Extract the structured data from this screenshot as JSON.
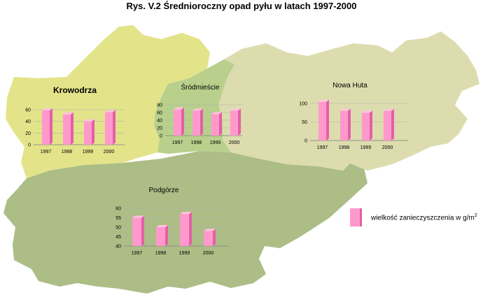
{
  "title": "Rys. V.2 Średnioroczny opad pyłu  w latach 1997-2000",
  "colors": {
    "krowodrza": "#e3e38a",
    "srodmiescie": "#b9d08c",
    "nowa_huta": "#dcdcae",
    "podgorze": "#acbd86",
    "bar_front": "#ff99cc",
    "bar_side": "#e45fa6",
    "bar_top": "#ffc2e0",
    "gridline": "#b0b0b0"
  },
  "legend": {
    "label": "wielkość zanieczyszczenia w g/m",
    "sup": "2"
  },
  "chart_data": [
    {
      "type": "bar",
      "district": "Krowodrza",
      "categories": [
        "1997",
        "1998",
        "1999",
        "2000"
      ],
      "values": [
        59,
        52,
        40,
        56
      ],
      "ylim": [
        0,
        60
      ],
      "yticks": [
        0,
        20,
        40,
        60
      ],
      "grid": true
    },
    {
      "type": "bar",
      "district": "Śródmieście",
      "categories": [
        "1997",
        "1998",
        "1999",
        "2000"
      ],
      "values": [
        68,
        65,
        56,
        65
      ],
      "ylim": [
        0,
        80
      ],
      "yticks": [
        0,
        20,
        40,
        60,
        80
      ],
      "grid": true
    },
    {
      "type": "bar",
      "district": "Nowa Huta",
      "categories": [
        "1997",
        "1998",
        "1999",
        "2000"
      ],
      "values": [
        104,
        80,
        75,
        80
      ],
      "ylim": [
        0,
        100
      ],
      "yticks": [
        0,
        50,
        100
      ],
      "grid": true
    },
    {
      "type": "bar",
      "district": "Podgórze",
      "categories": [
        "1997",
        "1998",
        "1999",
        "2000"
      ],
      "values": [
        55,
        50,
        57,
        48
      ],
      "ylim": [
        40,
        60
      ],
      "yticks": [
        40,
        45,
        50,
        55,
        60
      ],
      "grid": true
    }
  ]
}
